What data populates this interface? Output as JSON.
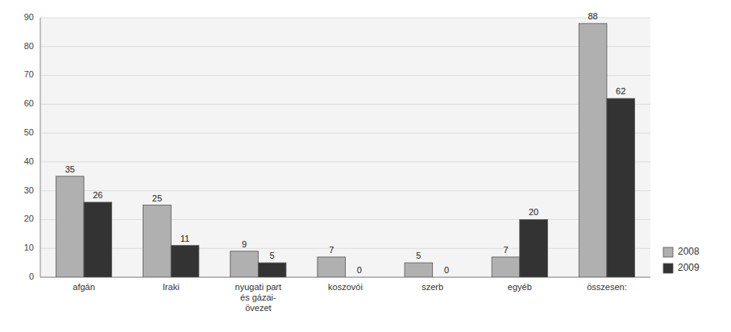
{
  "chart_data": {
    "type": "bar",
    "categories": [
      "afgán",
      "Iraki",
      "nyugati part\nés gázai-\növezet",
      "koszovói",
      "szerb",
      "egyéb",
      "összesen:"
    ],
    "series": [
      {
        "name": "2008",
        "color": "#b0b0b0",
        "values": [
          35,
          25,
          9,
          7,
          5,
          7,
          88
        ]
      },
      {
        "name": "2009",
        "color": "#333333",
        "values": [
          26,
          11,
          5,
          0,
          0,
          20,
          62
        ]
      }
    ],
    "ylim": [
      0,
      90
    ],
    "yticks": [
      0,
      10,
      20,
      30,
      40,
      50,
      60,
      70,
      80,
      90
    ],
    "grid": true,
    "legend": "lower right",
    "data_labels": true
  }
}
